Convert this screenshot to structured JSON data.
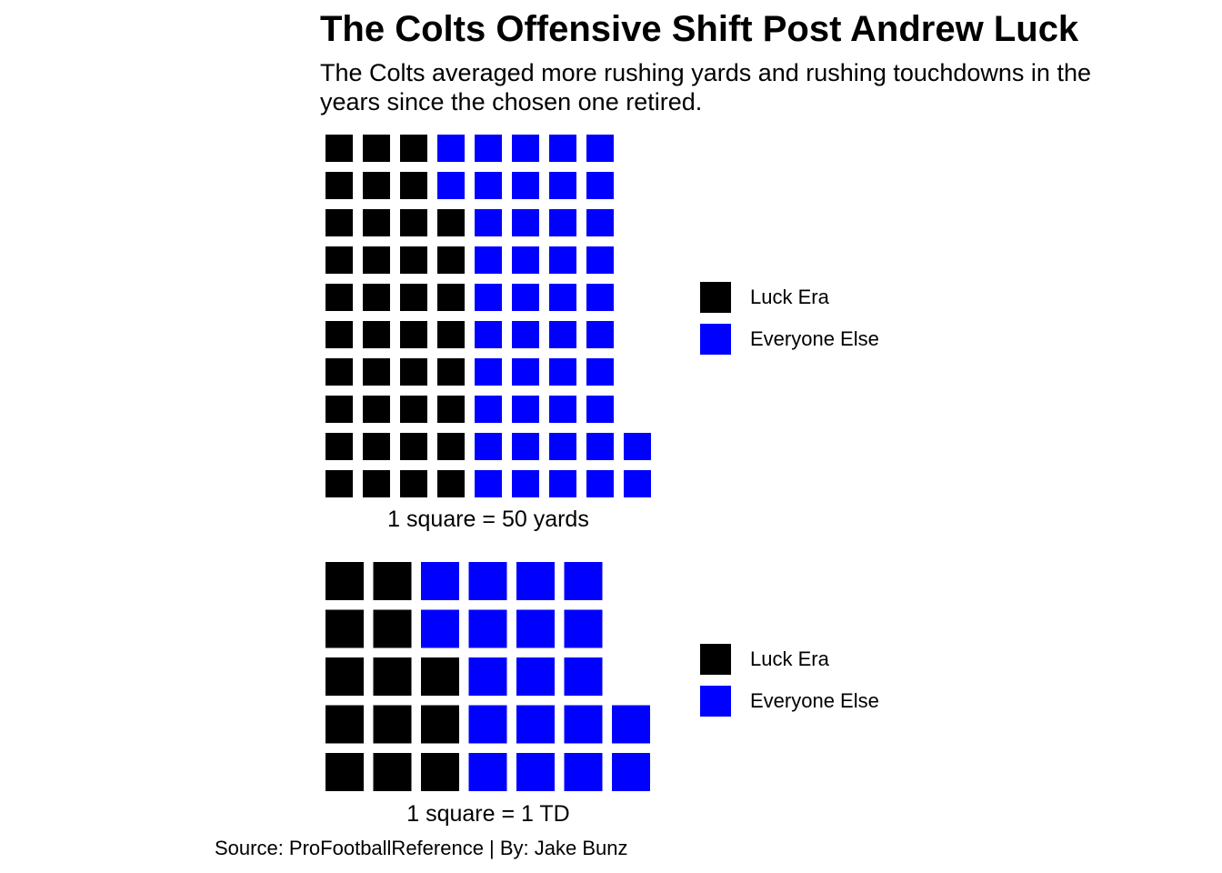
{
  "title": "The Colts Offensive Shift Post Andrew Luck",
  "subtitle": "The Colts averaged more rushing yards and rushing touchdowns in the\n years since the chosen one retired.",
  "source": "Source: ProFootballReference | By: Jake Bunz",
  "colors": {
    "luck_era": "#000000",
    "everyone_else": "#0000ff"
  },
  "chart_data": [
    {
      "type": "waffle",
      "rows": 10,
      "caption": "1 square = 50 yards",
      "units_per_square": 50,
      "unit": "yards",
      "legend": [
        "Luck Era",
        "Everyone Else"
      ],
      "series": [
        {
          "name": "Luck Era",
          "values": [
            3,
            3,
            4,
            4,
            4,
            4,
            4,
            4,
            4,
            4
          ],
          "total_squares": 38
        },
        {
          "name": "Everyone Else",
          "values": [
            5,
            5,
            4,
            4,
            4,
            4,
            4,
            4,
            5,
            5
          ],
          "total_squares": 44
        }
      ]
    },
    {
      "type": "waffle",
      "rows": 5,
      "caption": "1 square = 1 TD",
      "units_per_square": 1,
      "unit": "TD",
      "legend": [
        "Luck Era",
        "Everyone Else"
      ],
      "series": [
        {
          "name": "Luck Era",
          "values": [
            2,
            2,
            3,
            3,
            3
          ],
          "total_squares": 13
        },
        {
          "name": "Everyone Else",
          "values": [
            4,
            4,
            3,
            4,
            4
          ],
          "total_squares": 19
        }
      ]
    }
  ]
}
